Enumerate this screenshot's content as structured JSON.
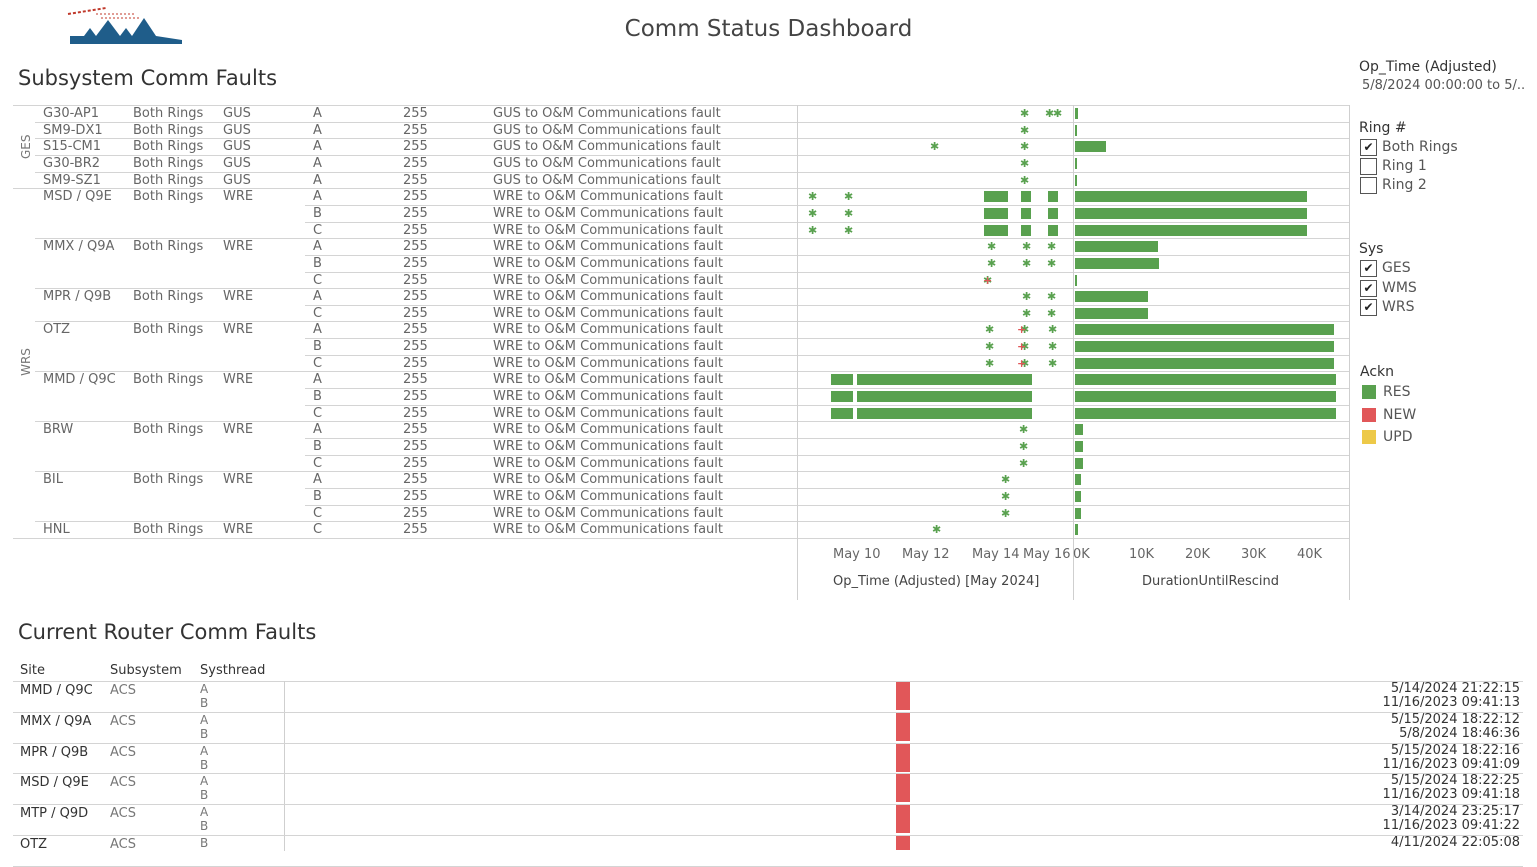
{
  "dashboard": {
    "title": "Comm Status Dashboard"
  },
  "subsystem": {
    "title": "Subsystem Comm Faults",
    "groups": [
      {
        "label": "GES"
      },
      {
        "label": "WRS"
      }
    ],
    "rows": [
      {
        "site": "G30-AP1",
        "ring": "Both Rings",
        "sys": "GUS",
        "thread": "A",
        "code": "255",
        "desc": "GUS to O&M Communications fault",
        "duration": 500
      },
      {
        "site": "SM9-DX1",
        "ring": "Both Rings",
        "sys": "GUS",
        "thread": "A",
        "code": "255",
        "desc": "GUS to O&M Communications fault",
        "duration": 200
      },
      {
        "site": "S15-CM1",
        "ring": "Both Rings",
        "sys": "GUS",
        "thread": "A",
        "code": "255",
        "desc": "GUS to O&M Communications fault",
        "duration": 5500
      },
      {
        "site": "G30-BR2",
        "ring": "Both Rings",
        "sys": "GUS",
        "thread": "A",
        "code": "255",
        "desc": "GUS to O&M Communications fault",
        "duration": 100
      },
      {
        "site": "SM9-SZ1",
        "ring": "Both Rings",
        "sys": "GUS",
        "thread": "A",
        "code": "255",
        "desc": "GUS to O&M Communications fault",
        "duration": 100
      },
      {
        "site": "MSD / Q9E",
        "ring": "Both Rings",
        "sys": "WRE",
        "thread": "A",
        "code": "255",
        "desc": "WRE to O&M Communications fault",
        "duration": 41500
      },
      {
        "site": "",
        "ring": "",
        "sys": "",
        "thread": "B",
        "code": "255",
        "desc": "WRE to O&M Communications fault",
        "duration": 41500
      },
      {
        "site": "",
        "ring": "",
        "sys": "",
        "thread": "C",
        "code": "255",
        "desc": "WRE to O&M Communications fault",
        "duration": 41500
      },
      {
        "site": "MMX / Q9A",
        "ring": "Both Rings",
        "sys": "WRE",
        "thread": "A",
        "code": "255",
        "desc": "WRE to O&M Communications fault",
        "duration": 14800
      },
      {
        "site": "",
        "ring": "",
        "sys": "",
        "thread": "B",
        "code": "255",
        "desc": "WRE to O&M Communications fault",
        "duration": 15000
      },
      {
        "site": "",
        "ring": "",
        "sys": "",
        "thread": "C",
        "code": "255",
        "desc": "WRE to O&M Communications fault",
        "duration": 300
      },
      {
        "site": "MPR / Q9B",
        "ring": "Both Rings",
        "sys": "WRE",
        "thread": "A",
        "code": "255",
        "desc": "WRE to O&M Communications fault",
        "duration": 13000
      },
      {
        "site": "",
        "ring": "",
        "sys": "",
        "thread": "C",
        "code": "255",
        "desc": "WRE to O&M Communications fault",
        "duration": 13000
      },
      {
        "site": "OTZ",
        "ring": "Both Rings",
        "sys": "WRE",
        "thread": "A",
        "code": "255",
        "desc": "WRE to O&M Communications fault",
        "duration": 46300
      },
      {
        "site": "",
        "ring": "",
        "sys": "",
        "thread": "B",
        "code": "255",
        "desc": "WRE to O&M Communications fault",
        "duration": 46300
      },
      {
        "site": "",
        "ring": "",
        "sys": "",
        "thread": "C",
        "code": "255",
        "desc": "WRE to O&M Communications fault",
        "duration": 46300
      },
      {
        "site": "MMD / Q9C",
        "ring": "Both Rings",
        "sys": "WRE",
        "thread": "A",
        "code": "255",
        "desc": "WRE to O&M Communications fault",
        "duration": 46600
      },
      {
        "site": "",
        "ring": "",
        "sys": "",
        "thread": "B",
        "code": "255",
        "desc": "WRE to O&M Communications fault",
        "duration": 46600
      },
      {
        "site": "",
        "ring": "",
        "sys": "",
        "thread": "C",
        "code": "255",
        "desc": "WRE to O&M Communications fault",
        "duration": 46600
      },
      {
        "site": "BRW",
        "ring": "Both Rings",
        "sys": "WRE",
        "thread": "A",
        "code": "255",
        "desc": "WRE to O&M Communications fault",
        "duration": 1400
      },
      {
        "site": "",
        "ring": "",
        "sys": "",
        "thread": "B",
        "code": "255",
        "desc": "WRE to O&M Communications fault",
        "duration": 1400
      },
      {
        "site": "",
        "ring": "",
        "sys": "",
        "thread": "C",
        "code": "255",
        "desc": "WRE to O&M Communications fault",
        "duration": 1400
      },
      {
        "site": "BIL",
        "ring": "Both Rings",
        "sys": "WRE",
        "thread": "A",
        "code": "255",
        "desc": "WRE to O&M Communications fault",
        "duration": 1000
      },
      {
        "site": "",
        "ring": "",
        "sys": "",
        "thread": "B",
        "code": "255",
        "desc": "WRE to O&M Communications fault",
        "duration": 1000
      },
      {
        "site": "",
        "ring": "",
        "sys": "",
        "thread": "C",
        "code": "255",
        "desc": "WRE to O&M Communications fault",
        "duration": 1000
      },
      {
        "site": "HNL",
        "ring": "Both Rings",
        "sys": "WRE",
        "thread": "C",
        "code": "255",
        "desc": "WRE to O&M Communications fault",
        "duration": 600
      }
    ],
    "timeline": {
      "ticks": [
        "May 10",
        "May 12",
        "May 14",
        "May 16"
      ],
      "axis_title": "Op_Time (Adjusted) [May 2024]"
    },
    "duration_axis": {
      "ticks": [
        "0K",
        "10K",
        "20K",
        "30K",
        "40K"
      ],
      "axis_title": "DurationUntilRescind"
    }
  },
  "filters": {
    "optime": {
      "title": "Op_Time (Adjusted)",
      "value": "5/8/2024 00:00:00 to 5/.."
    },
    "ring": {
      "title": "Ring #",
      "items": [
        {
          "label": "Both Rings",
          "checked": true
        },
        {
          "label": "Ring 1",
          "checked": false
        },
        {
          "label": "Ring 2",
          "checked": false
        }
      ]
    },
    "sys": {
      "title": "Sys",
      "items": [
        {
          "label": "GES",
          "checked": true
        },
        {
          "label": "WMS",
          "checked": true
        },
        {
          "label": "WRS",
          "checked": true
        }
      ]
    },
    "ackn": {
      "title": "Ackn",
      "items": [
        {
          "label": "RES",
          "color": "#59a14f"
        },
        {
          "label": "NEW",
          "color": "#e15759"
        },
        {
          "label": "UPD",
          "color": "#edc948"
        }
      ]
    }
  },
  "router": {
    "title": "Current Router Comm Faults",
    "headers": {
      "site": "Site",
      "subsystem": "Subsystem",
      "systhread": "Systhread"
    },
    "rows": [
      {
        "site": "MMD / Q9C",
        "subsystem": "ACS",
        "threads": [
          "A",
          "B"
        ],
        "dates": [
          "5/14/2024 21:22:15",
          "11/16/2023 09:41:13"
        ]
      },
      {
        "site": "MMX / Q9A",
        "subsystem": "ACS",
        "threads": [
          "A",
          "B"
        ],
        "dates": [
          "5/15/2024 18:22:12",
          "5/8/2024 18:46:36"
        ]
      },
      {
        "site": "MPR / Q9B",
        "subsystem": "ACS",
        "threads": [
          "A",
          "B"
        ],
        "dates": [
          "5/15/2024 18:22:16",
          "11/16/2023 09:41:09"
        ]
      },
      {
        "site": "MSD / Q9E",
        "subsystem": "ACS",
        "threads": [
          "A",
          "B"
        ],
        "dates": [
          "5/15/2024 18:22:25",
          "11/16/2023 09:41:18"
        ]
      },
      {
        "site": "MTP / Q9D",
        "subsystem": "ACS",
        "threads": [
          "A",
          "B"
        ],
        "dates": [
          "3/14/2024 23:25:17",
          "11/16/2023 09:41:22"
        ]
      },
      {
        "site": "OTZ",
        "subsystem": "ACS",
        "threads": [
          "B"
        ],
        "dates": [
          "4/11/2024 22:05:08"
        ]
      }
    ]
  },
  "colors": {
    "res": "#59a14f",
    "new": "#e15759",
    "upd": "#edc948"
  }
}
